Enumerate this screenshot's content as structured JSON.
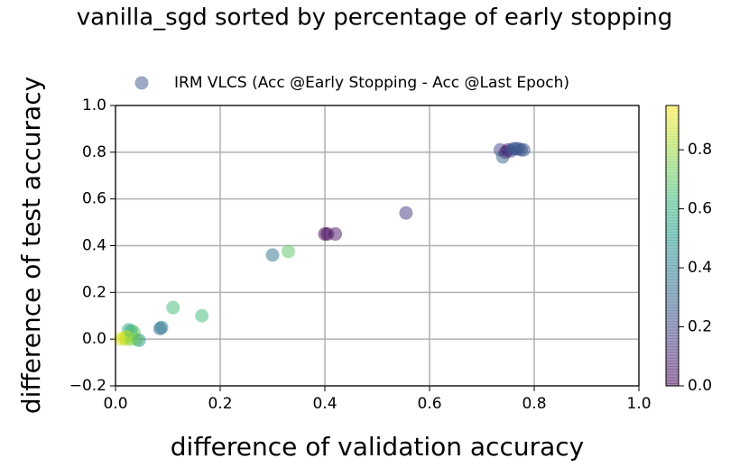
{
  "chart_data": {
    "type": "scatter",
    "title": "vanilla_sgd sorted by percentage of early stopping",
    "x_label": "difference of validation accuracy",
    "y_label": "difference of test accuracy",
    "series": [
      {
        "name": "IRM VLCS (Acc @Early Stopping - Acc @Last Epoch)",
        "colormap": "viridis",
        "alpha": 0.5,
        "x": [
          0.735,
          0.74,
          0.745,
          0.75,
          0.755,
          0.76,
          0.765,
          0.77,
          0.775,
          0.78,
          0.555,
          0.4,
          0.405,
          0.42,
          0.3,
          0.33,
          0.11,
          0.165,
          0.085,
          0.088,
          0.01,
          0.015,
          0.02,
          0.025,
          0.03,
          0.035,
          0.04,
          0.045,
          0.02,
          0.03
        ],
        "values": [
          0.81,
          0.78,
          0.8,
          0.81,
          0.805,
          0.815,
          0.815,
          0.815,
          0.81,
          0.81,
          0.54,
          0.45,
          0.45,
          0.45,
          0.36,
          0.375,
          0.135,
          0.1,
          0.045,
          0.05,
          0.0,
          0.005,
          0.0,
          0.04,
          0.035,
          0.03,
          0.0,
          -0.005,
          0.01,
          0.0
        ],
        "c": [
          0.2,
          0.3,
          0.1,
          0.05,
          0.2,
          0.25,
          0.25,
          0.25,
          0.25,
          0.25,
          0.15,
          0.0,
          0.02,
          0.05,
          0.35,
          0.7,
          0.65,
          0.65,
          0.3,
          0.4,
          0.9,
          0.92,
          0.85,
          0.6,
          0.55,
          0.7,
          0.8,
          0.5,
          0.9,
          0.75
        ]
      }
    ],
    "xlim": [
      0,
      1
    ],
    "xticks": [
      {
        "value": 0,
        "label": "0.0"
      },
      0.2,
      0.4,
      0.6,
      0.8,
      {
        "value": 1,
        "label": "1.0"
      }
    ],
    "ylim": [
      -0.2,
      1
    ],
    "yticks": [
      {
        "value": -0.2,
        "label": "−0.2"
      },
      {
        "value": 0,
        "label": "0.0"
      },
      0.2,
      0.4,
      0.6,
      0.8,
      {
        "value": 1,
        "label": "1.0"
      }
    ],
    "clim": [
      0,
      0.95
    ],
    "cticks": [
      {
        "value": 0,
        "label": "0.0"
      },
      0.2,
      0.4,
      0.6,
      0.8
    ],
    "grid": true,
    "legend": "top"
  }
}
